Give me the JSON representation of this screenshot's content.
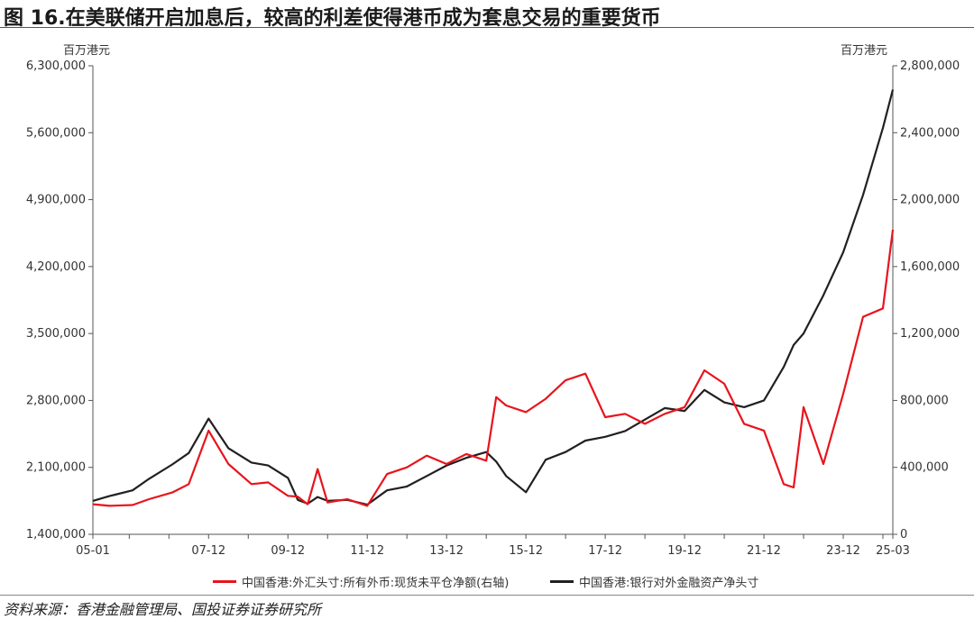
{
  "header": {
    "title": "图 16.在美联储开启加息后，较高的利差使得港币成为套息交易的重要货币"
  },
  "source": "资料来源：香港金融管理局、国投证券证券研究所",
  "colors": {
    "red": "#e8141c",
    "black": "#231f20",
    "axis": "#555555"
  },
  "chart_data": {
    "type": "line",
    "y_left": {
      "unit": "百万港元",
      "lim": [
        1400000,
        6300000
      ],
      "ticks": [
        1400000,
        2100000,
        2800000,
        3500000,
        4200000,
        4900000,
        5600000,
        6300000
      ],
      "tick_labels": [
        "1,400,000",
        "2,100,000",
        "2,800,000",
        "3,500,000",
        "4,200,000",
        "4,900,000",
        "5,600,000",
        "6,300,000"
      ]
    },
    "y_right": {
      "unit": "百万港元",
      "lim": [
        0,
        2800000
      ],
      "ticks": [
        0,
        400000,
        800000,
        1200000,
        1600000,
        2000000,
        2400000,
        2800000
      ],
      "tick_labels": [
        "0",
        "400,000",
        "800,000",
        "1,200,000",
        "1,600,000",
        "2,000,000",
        "2,400,000",
        "2,800,000"
      ]
    },
    "x_range": [
      "2005-01",
      "2025-03"
    ],
    "x_ticks": [
      "05-01",
      "07-12",
      "09-12",
      "11-12",
      "13-12",
      "15-12",
      "17-12",
      "19-12",
      "21-12",
      "23-12",
      "25-03"
    ],
    "grid": false,
    "legend_position": "bottom",
    "series": [
      {
        "name": "中国香港:外汇头寸:所有外币:现货未平仓净额(右轴)",
        "axis": "right",
        "color": "#e8141c",
        "points": [
          [
            "2005-01",
            180000
          ],
          [
            "2005-06",
            170000
          ],
          [
            "2006-01",
            175000
          ],
          [
            "2006-06",
            210000
          ],
          [
            "2007-01",
            250000
          ],
          [
            "2007-06",
            300000
          ],
          [
            "2007-12",
            620000
          ],
          [
            "2008-06",
            420000
          ],
          [
            "2009-01",
            300000
          ],
          [
            "2009-06",
            310000
          ],
          [
            "2009-12",
            230000
          ],
          [
            "2010-03",
            225000
          ],
          [
            "2010-06",
            180000
          ],
          [
            "2010-09",
            390000
          ],
          [
            "2010-12",
            190000
          ],
          [
            "2011-06",
            210000
          ],
          [
            "2011-12",
            170000
          ],
          [
            "2012-06",
            360000
          ],
          [
            "2012-12",
            400000
          ],
          [
            "2013-06",
            470000
          ],
          [
            "2013-12",
            420000
          ],
          [
            "2014-06",
            480000
          ],
          [
            "2014-12",
            440000
          ],
          [
            "2015-03",
            820000
          ],
          [
            "2015-06",
            770000
          ],
          [
            "2015-12",
            730000
          ],
          [
            "2016-06",
            810000
          ],
          [
            "2016-12",
            920000
          ],
          [
            "2017-06",
            960000
          ],
          [
            "2017-12",
            700000
          ],
          [
            "2018-06",
            720000
          ],
          [
            "2018-12",
            660000
          ],
          [
            "2019-06",
            720000
          ],
          [
            "2019-12",
            760000
          ],
          [
            "2020-06",
            980000
          ],
          [
            "2020-12",
            900000
          ],
          [
            "2021-06",
            660000
          ],
          [
            "2021-12",
            620000
          ],
          [
            "2022-06",
            300000
          ],
          [
            "2022-09",
            280000
          ],
          [
            "2022-12",
            760000
          ],
          [
            "2023-06",
            420000
          ],
          [
            "2023-12",
            840000
          ],
          [
            "2024-06",
            1300000
          ],
          [
            "2024-12",
            1350000
          ],
          [
            "2025-03",
            1820000
          ]
        ]
      },
      {
        "name": "中国香港:银行对外金融资产净头寸",
        "axis": "left",
        "color": "#231f20",
        "points": [
          [
            "2005-01",
            1750000
          ],
          [
            "2005-06",
            1800000
          ],
          [
            "2006-01",
            1860000
          ],
          [
            "2006-06",
            1980000
          ],
          [
            "2007-01",
            2130000
          ],
          [
            "2007-06",
            2250000
          ],
          [
            "2007-12",
            2610000
          ],
          [
            "2008-06",
            2300000
          ],
          [
            "2009-01",
            2150000
          ],
          [
            "2009-06",
            2120000
          ],
          [
            "2009-12",
            1990000
          ],
          [
            "2010-03",
            1760000
          ],
          [
            "2010-06",
            1720000
          ],
          [
            "2010-09",
            1790000
          ],
          [
            "2010-12",
            1750000
          ],
          [
            "2011-06",
            1760000
          ],
          [
            "2011-12",
            1710000
          ],
          [
            "2012-06",
            1860000
          ],
          [
            "2012-12",
            1900000
          ],
          [
            "2013-06",
            2010000
          ],
          [
            "2013-12",
            2120000
          ],
          [
            "2014-06",
            2200000
          ],
          [
            "2014-12",
            2260000
          ],
          [
            "2015-03",
            2160000
          ],
          [
            "2015-06",
            2010000
          ],
          [
            "2015-12",
            1840000
          ],
          [
            "2016-06",
            2180000
          ],
          [
            "2016-12",
            2260000
          ],
          [
            "2017-06",
            2380000
          ],
          [
            "2017-12",
            2420000
          ],
          [
            "2018-06",
            2480000
          ],
          [
            "2018-12",
            2600000
          ],
          [
            "2019-06",
            2720000
          ],
          [
            "2019-12",
            2690000
          ],
          [
            "2020-06",
            2910000
          ],
          [
            "2020-12",
            2780000
          ],
          [
            "2021-06",
            2730000
          ],
          [
            "2021-12",
            2800000
          ],
          [
            "2022-06",
            3150000
          ],
          [
            "2022-09",
            3380000
          ],
          [
            "2022-12",
            3500000
          ],
          [
            "2023-06",
            3900000
          ],
          [
            "2023-12",
            4350000
          ],
          [
            "2024-06",
            4950000
          ],
          [
            "2024-12",
            5650000
          ],
          [
            "2025-03",
            6050000
          ]
        ]
      }
    ]
  }
}
